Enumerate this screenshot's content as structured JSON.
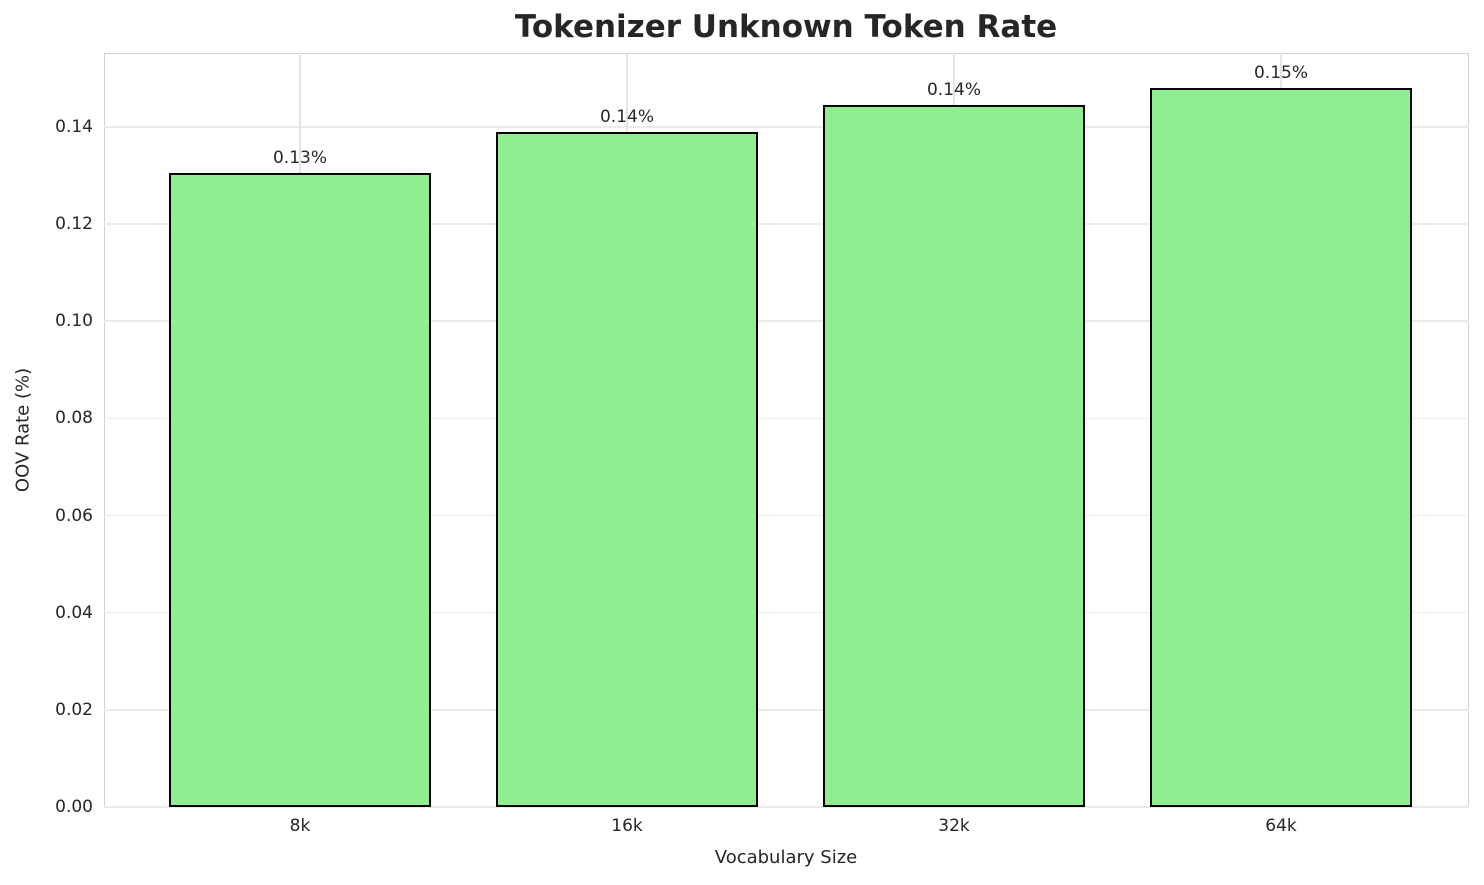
{
  "chart_data": {
    "type": "bar",
    "title": "Tokenizer Unknown Token Rate",
    "xlabel": "Vocabulary Size",
    "ylabel": "OOV Rate (%)",
    "categories": [
      "8k",
      "16k",
      "32k",
      "64k"
    ],
    "values": [
      0.1305,
      0.139,
      0.1445,
      0.148
    ],
    "bar_labels": [
      "0.13%",
      "0.14%",
      "0.14%",
      "0.15%"
    ],
    "yticks": [
      0.0,
      0.02,
      0.04,
      0.06,
      0.08,
      0.1,
      0.12,
      0.14
    ],
    "ytick_labels": [
      "0.00",
      "0.02",
      "0.04",
      "0.06",
      "0.08",
      "0.10",
      "0.12",
      "0.14"
    ],
    "ylim": [
      0,
      0.1552
    ],
    "grid": true,
    "legend": null,
    "colors": {
      "bar_fill": "#90EE90",
      "bar_edge": "#000000",
      "grid": "#ebebeb",
      "spine": "#d0d0d0",
      "title": "#262626",
      "text": "#262626",
      "background": "#ffffff"
    }
  }
}
